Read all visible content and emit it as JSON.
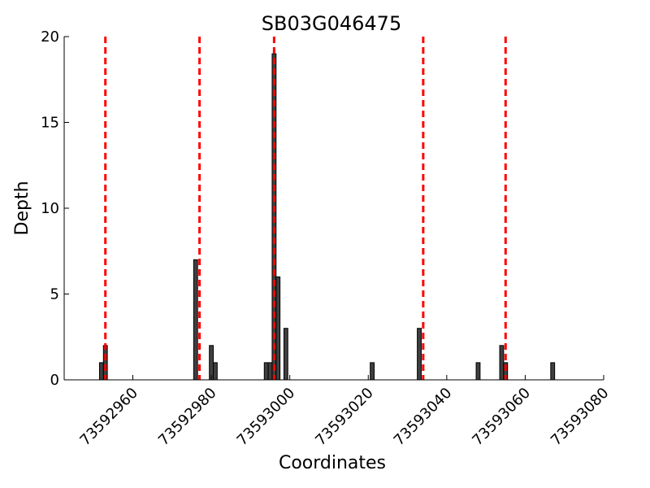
{
  "chart_data": {
    "type": "bar",
    "title": "SB03G046475",
    "xlabel": "Coordinates",
    "ylabel": "Depth",
    "xlim": [
      73592942.5,
      73593080
    ],
    "ylim": [
      0,
      20
    ],
    "xticks": [
      73592960,
      73592980,
      73593000,
      73593020,
      73593040,
      73593060,
      73593080
    ],
    "yticks": [
      0,
      5,
      10,
      15,
      20
    ],
    "grid": false,
    "bar_width": 1,
    "bar_color": "#404040",
    "bars": [
      {
        "x": 73592952,
        "y": 1
      },
      {
        "x": 73592953,
        "y": 2
      },
      {
        "x": 73592976,
        "y": 7
      },
      {
        "x": 73592980,
        "y": 2
      },
      {
        "x": 73592981,
        "y": 1
      },
      {
        "x": 73592994,
        "y": 1
      },
      {
        "x": 73592995,
        "y": 1
      },
      {
        "x": 73592996,
        "y": 19
      },
      {
        "x": 73592997,
        "y": 6
      },
      {
        "x": 73592999,
        "y": 3
      },
      {
        "x": 73593021,
        "y": 1
      },
      {
        "x": 73593033,
        "y": 3
      },
      {
        "x": 73593048,
        "y": 1
      },
      {
        "x": 73593054,
        "y": 2
      },
      {
        "x": 73593055,
        "y": 1
      },
      {
        "x": 73593067,
        "y": 1
      }
    ],
    "vlines": [
      73592953,
      73592977,
      73592996,
      73593034,
      73593055
    ],
    "vline_color": "#ff0000",
    "vline_style": "dashed"
  }
}
